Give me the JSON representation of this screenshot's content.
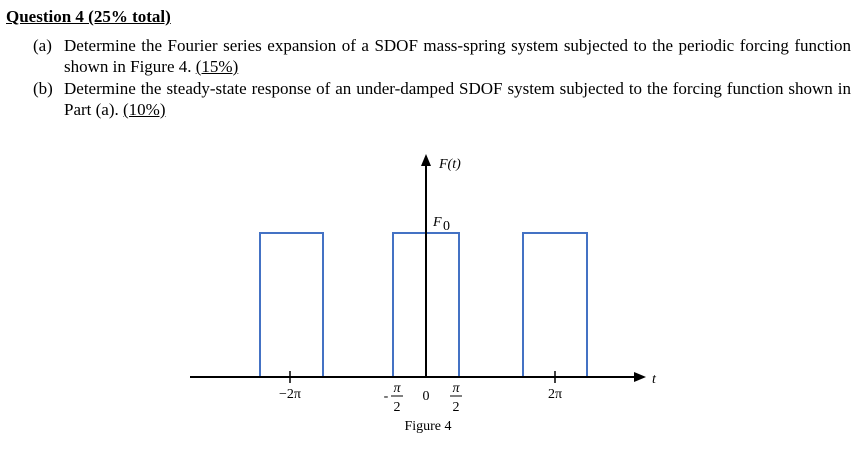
{
  "question": {
    "title": "Question 4 (25% total)",
    "parts": [
      {
        "label": "(a)",
        "text": "Determine the Fourier series expansion of a SDOF mass-spring system subjected to the periodic forcing function shown in Figure 4.",
        "weight": "(15%)"
      },
      {
        "label": "(b)",
        "text": "Determine the steady-state response of an under-damped SDOF system subjected to the forcing function shown in Part (a).",
        "weight": "(10%)"
      }
    ]
  },
  "figure": {
    "y_label": "F(t)",
    "x_label": "t",
    "amplitude": {
      "symbol": "F",
      "subscript": "0"
    },
    "ticks": {
      "neg_two_pi": "−2π",
      "zero": "0",
      "two_pi": "2π"
    },
    "half_period": {
      "minus": "-",
      "numerator": "π",
      "denominator": "2"
    },
    "caption": "Figure 4"
  }
}
